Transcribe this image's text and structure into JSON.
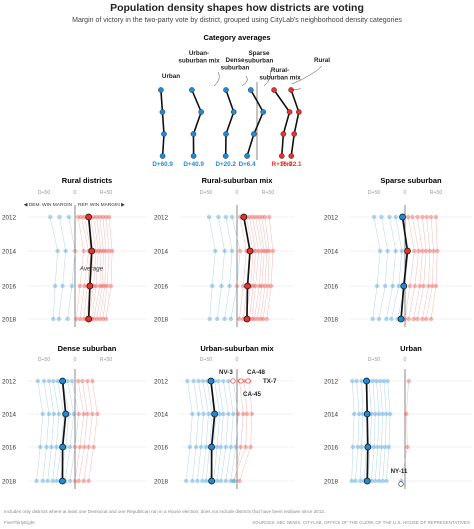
{
  "title": "Population density shapes how districts are voting",
  "subtitle": "Margin of victory in the two-party vote by district, grouped using CityLab's neighborhood density categories",
  "footnote": "Includes only districts where at least one Democrat and one Republican ran in a House election; does not include districts that have been redrawn since 2012.",
  "brand": "FiveThirtyEight",
  "sources": "SOURCES: ABC NEWS, CITYLAB, OFFICE OF THE CLERK OF THE U.S. HOUSE OF REPRESENTATIVES",
  "colors": {
    "dem": "#1f8ad6",
    "rep": "#e8312b",
    "avg": "#111111",
    "dem_light": "#9fcbe9",
    "rep_light": "#f2a9a5"
  },
  "chart_data": [
    {
      "type": "line",
      "title": "Category averages",
      "y_order": [
        "2012",
        "2014",
        "2016",
        "2018"
      ],
      "series": [
        {
          "name": "Urban",
          "values": [
            -62,
            -61,
            -60,
            -60.9
          ],
          "color": "#1f8ad6",
          "end_label": "D+60.9"
        },
        {
          "name": "Urban-suburban mix",
          "values": [
            -42,
            -36,
            -41,
            -40.9
          ],
          "color": "#1f8ad6",
          "end_label": "D+40.9"
        },
        {
          "name": "Dense suburban",
          "values": [
            -20,
            -15,
            -20,
            -20.2
          ],
          "color": "#1f8ad6",
          "end_label": "D+20.2"
        },
        {
          "name": "Sparse suburban",
          "values": [
            -4,
            4,
            -2,
            -6.4
          ],
          "color": "#1f8ad6",
          "end_label": "D+6.4"
        },
        {
          "name": "Rural-suburban mix",
          "values": [
            11,
            21,
            17,
            16.0
          ],
          "color": "#e8312b",
          "end_label": "R+16.0"
        },
        {
          "name": "Rural",
          "values": [
            22,
            27,
            24,
            22.1
          ],
          "color": "#e8312b",
          "end_label": "R+22.1"
        }
      ]
    },
    {
      "type": "scatter",
      "title": "Rural districts",
      "years": [
        "2012",
        "2014",
        "2016",
        "2018"
      ],
      "x_ticks": [
        "D+50",
        "0",
        "R+50"
      ],
      "direction_labels": [
        "DEM. WIN MARGIN",
        "REP. WIN MARGIN"
      ],
      "average": [
        22,
        27,
        24,
        22.1
      ],
      "average_label": "Average",
      "districts": [
        [
          -40,
          -28,
          -32,
          -35
        ],
        [
          -25,
          -15,
          -20,
          -26
        ],
        [
          -10,
          0,
          -5,
          -12
        ],
        [
          5,
          14,
          8,
          2
        ],
        [
          10,
          22,
          15,
          8
        ],
        [
          15,
          26,
          20,
          14
        ],
        [
          20,
          30,
          25,
          18
        ],
        [
          25,
          34,
          30,
          22
        ],
        [
          30,
          38,
          34,
          27
        ],
        [
          35,
          42,
          40,
          30
        ],
        [
          40,
          46,
          44,
          35
        ],
        [
          45,
          50,
          48,
          40
        ],
        [
          50,
          55,
          52,
          45
        ],
        [
          55,
          60,
          58,
          50
        ]
      ]
    },
    {
      "type": "scatter",
      "title": "Rural-suburban mix",
      "years": [
        "2012",
        "2014",
        "2016",
        "2018"
      ],
      "x_ticks": [
        "D+50",
        "0",
        "R+50"
      ],
      "average": [
        11,
        21,
        17,
        16.0
      ],
      "districts": [
        [
          -45,
          -35,
          -40,
          -44
        ],
        [
          -30,
          -20,
          -25,
          -32
        ],
        [
          -18,
          -8,
          -12,
          -20
        ],
        [
          -8,
          5,
          0,
          -10
        ],
        [
          5,
          15,
          10,
          4
        ],
        [
          10,
          22,
          16,
          10
        ],
        [
          15,
          26,
          22,
          14
        ],
        [
          20,
          30,
          26,
          20
        ],
        [
          25,
          35,
          30,
          24
        ],
        [
          30,
          40,
          36,
          28
        ],
        [
          35,
          44,
          40,
          33
        ],
        [
          40,
          48,
          45,
          38
        ],
        [
          45,
          52,
          50,
          42
        ],
        [
          52,
          58,
          55,
          48
        ]
      ]
    },
    {
      "type": "scatter",
      "title": "Sparse suburban",
      "years": [
        "2012",
        "2014",
        "2016",
        "2018"
      ],
      "x_ticks": [
        "D+50",
        "0",
        "R+50"
      ],
      "average": [
        -4,
        4,
        -2,
        -6.4
      ],
      "districts": [
        [
          -50,
          -40,
          -45,
          -52
        ],
        [
          -38,
          -28,
          -32,
          -42
        ],
        [
          -25,
          -15,
          -20,
          -30
        ],
        [
          -15,
          -5,
          -10,
          -22
        ],
        [
          -5,
          5,
          0,
          -12
        ],
        [
          5,
          15,
          8,
          0
        ],
        [
          12,
          22,
          16,
          6
        ],
        [
          20,
          28,
          24,
          14
        ],
        [
          28,
          34,
          30,
          20
        ],
        [
          35,
          40,
          38,
          28
        ],
        [
          42,
          46,
          44,
          34
        ],
        [
          50,
          52,
          50,
          42
        ]
      ]
    },
    {
      "type": "scatter",
      "title": "Dense suburban",
      "years": [
        "2012",
        "2014",
        "2016",
        "2018"
      ],
      "x_ticks": [
        "D+50",
        "0",
        "R+50"
      ],
      "average": [
        -20,
        -15,
        -20,
        -20.2
      ],
      "districts": [
        [
          -60,
          -52,
          -56,
          -62
        ],
        [
          -50,
          -42,
          -46,
          -52
        ],
        [
          -42,
          -34,
          -38,
          -44
        ],
        [
          -35,
          -26,
          -30,
          -36
        ],
        [
          -28,
          -18,
          -22,
          -30
        ],
        [
          -20,
          -10,
          -15,
          -24
        ],
        [
          -12,
          -2,
          -8,
          -16
        ],
        [
          -5,
          6,
          0,
          -8
        ],
        [
          5,
          14,
          8,
          0
        ],
        [
          12,
          20,
          15,
          6
        ],
        [
          20,
          28,
          22,
          14
        ],
        [
          28,
          36,
          30,
          22
        ]
      ]
    },
    {
      "type": "scatter",
      "title": "Urban-suburban mix",
      "years": [
        "2012",
        "2014",
        "2016",
        "2018"
      ],
      "x_ticks": [
        "D+50",
        "0"
      ],
      "average": [
        -42,
        -36,
        -41,
        -40.9
      ],
      "annotations": [
        "NV-3",
        "CA-48",
        "TX-7",
        "CA-45"
      ],
      "districts": [
        [
          -80,
          -72,
          -76,
          -82
        ],
        [
          -70,
          -62,
          -66,
          -72
        ],
        [
          -62,
          -54,
          -58,
          -64
        ],
        [
          -55,
          -46,
          -50,
          -56
        ],
        [
          -48,
          -40,
          -44,
          -50
        ],
        [
          -42,
          -34,
          -38,
          -44
        ],
        [
          -36,
          -28,
          -32,
          -38
        ],
        [
          -30,
          -22,
          -26,
          -32
        ],
        [
          -22,
          -14,
          -18,
          -26
        ],
        [
          -14,
          -6,
          -10,
          -18
        ],
        [
          -6,
          2,
          -2,
          -10
        ],
        [
          4,
          10,
          6,
          -4
        ],
        [
          12,
          16,
          14,
          -6
        ],
        [
          20,
          24,
          22,
          4
        ]
      ]
    },
    {
      "type": "scatter",
      "title": "Urban",
      "years": [
        "2012",
        "2014",
        "2016",
        "2018"
      ],
      "x_ticks": [
        "D+50",
        "0"
      ],
      "average": [
        -62,
        -61,
        -60,
        -60.9
      ],
      "annotations": [
        "NY-11"
      ],
      "districts": [
        [
          -85,
          -82,
          -84,
          -86
        ],
        [
          -78,
          -74,
          -76,
          -80
        ],
        [
          -70,
          -68,
          -70,
          -72
        ],
        [
          -64,
          -60,
          -62,
          -66
        ],
        [
          -58,
          -54,
          -56,
          -60
        ],
        [
          -52,
          -48,
          -50,
          -54
        ],
        [
          -46,
          -42,
          -44,
          -48
        ],
        [
          -40,
          -36,
          -38,
          -42
        ],
        [
          -34,
          -30,
          -32,
          -36
        ],
        [
          -28,
          -24,
          -26,
          -30
        ],
        [
          6,
          2,
          4,
          -6
        ]
      ]
    }
  ]
}
